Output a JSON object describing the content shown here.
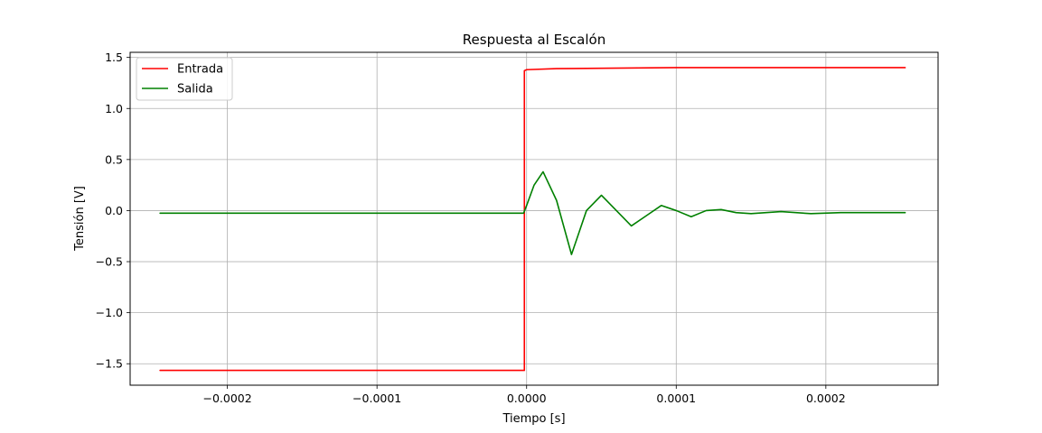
{
  "chart_data": {
    "type": "line",
    "title": "Respuesta al Escalón",
    "xlabel": "Tiempo [s]",
    "ylabel": "Tensión [V]",
    "xlim": [
      -0.000265,
      0.000275
    ],
    "ylim": [
      -1.71,
      1.55
    ],
    "xticks": [
      -0.0002,
      -0.0001,
      0.0,
      0.0001,
      0.0002
    ],
    "xtick_labels": [
      "−0.0002",
      "−0.0001",
      "0.0000",
      "0.0001",
      "0.0002"
    ],
    "yticks": [
      -1.5,
      -1.0,
      -0.5,
      0.0,
      0.5,
      1.0,
      1.5
    ],
    "ytick_labels": [
      "−1.5",
      "−1.0",
      "−0.5",
      "0.0",
      "0.5",
      "1.0",
      "1.5"
    ],
    "grid": true,
    "legend_position": "top-left",
    "series": [
      {
        "name": "Entrada",
        "color": "#ff0000",
        "x": [
          -0.000245,
          -0.0002,
          -0.0001,
          -3e-06,
          -1.5e-06,
          -1.5e-06,
          0.0,
          2e-05,
          0.0001,
          0.0002,
          0.000253
        ],
        "y": [
          -1.565,
          -1.565,
          -1.565,
          -1.565,
          -1.565,
          1.37,
          1.38,
          1.39,
          1.4,
          1.4,
          1.4
        ]
      },
      {
        "name": "Salida",
        "color": "#008000",
        "x": [
          -0.000245,
          -0.0001,
          -2e-06,
          0.0,
          5e-06,
          1.1e-05,
          2e-05,
          3e-05,
          4e-05,
          5e-05,
          6e-05,
          7e-05,
          8e-05,
          9e-05,
          0.0001,
          0.00011,
          0.00012,
          0.00013,
          0.00014,
          0.00015,
          0.00017,
          0.00019,
          0.00021,
          0.00023,
          0.000253
        ],
        "y": [
          -0.025,
          -0.025,
          -0.025,
          0.05,
          0.25,
          0.38,
          0.1,
          -0.43,
          0.0,
          0.15,
          0.0,
          -0.15,
          -0.05,
          0.05,
          0.0,
          -0.06,
          0.0,
          0.01,
          -0.02,
          -0.03,
          -0.01,
          -0.03,
          -0.02,
          -0.02,
          -0.02
        ]
      }
    ]
  }
}
